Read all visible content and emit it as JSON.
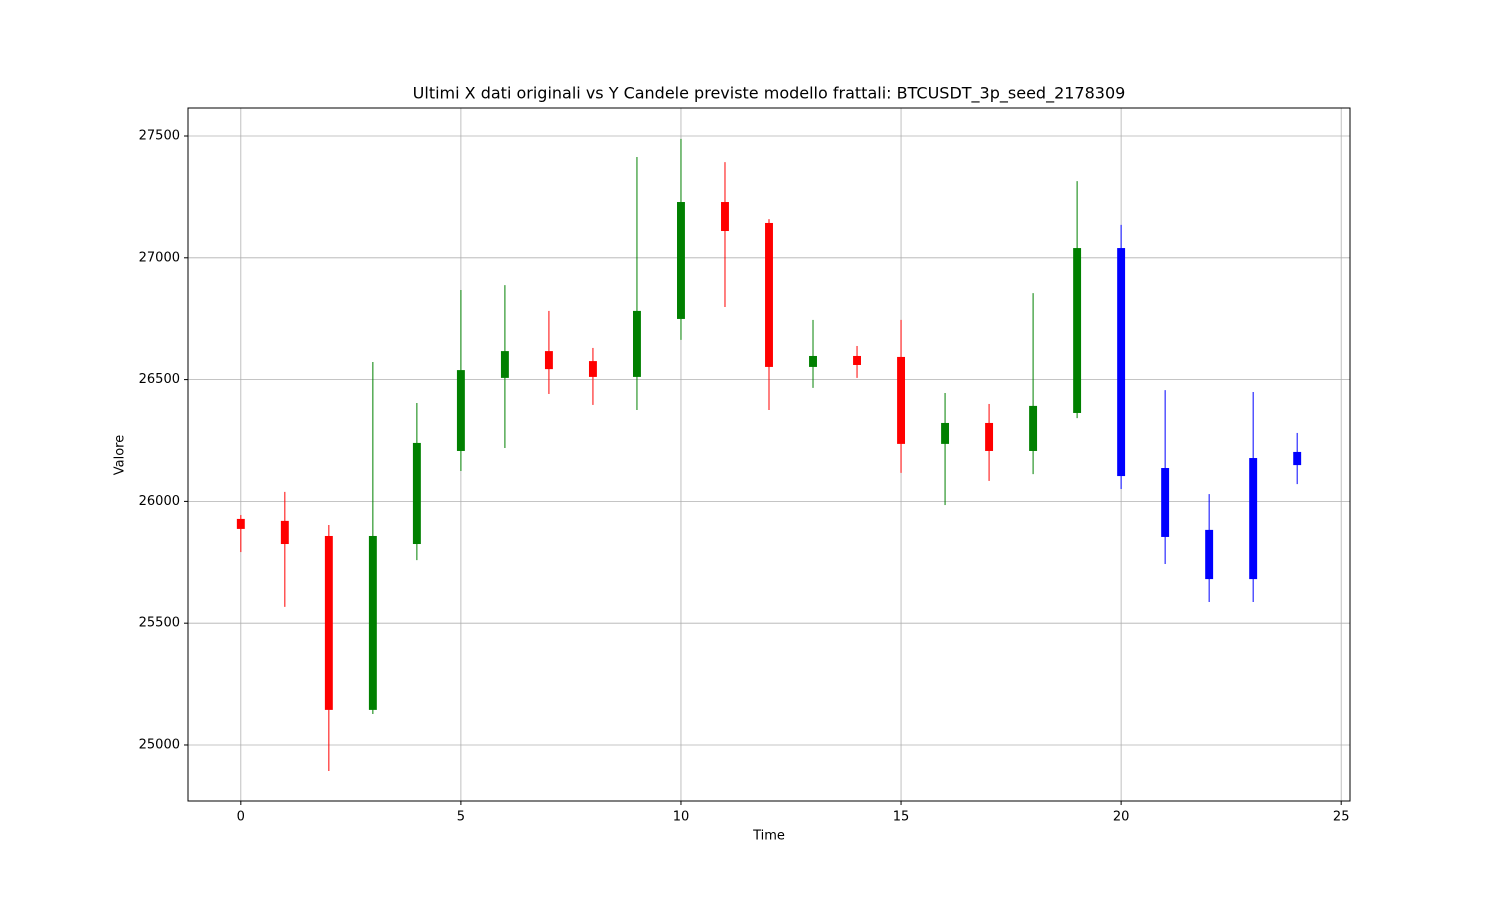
{
  "chart_data": {
    "type": "candlestick",
    "title": "Ultimi X dati originali vs Y Candele previste modello frattali: BTCUSDT_3p_seed_2178309",
    "xlabel": "Time",
    "ylabel": "Valore",
    "x": [
      0,
      1,
      2,
      3,
      4,
      5,
      6,
      7,
      8,
      9,
      10,
      11,
      12,
      13,
      14,
      15,
      16,
      17,
      18,
      19,
      20,
      21,
      22,
      23,
      24
    ],
    "open": [
      25928,
      25920,
      25858,
      25144,
      25825,
      26207,
      26507,
      26617,
      26576,
      26511,
      26749,
      27229,
      27143,
      26552,
      26597,
      26593,
      26236,
      26322,
      26207,
      26363,
      27040,
      26137,
      25883,
      25681,
      26149
    ],
    "high": [
      25944,
      26039,
      25903,
      26572,
      26404,
      26868,
      26888,
      26782,
      26630,
      27414,
      27488,
      27393,
      27159,
      26745,
      26638,
      26745,
      26445,
      26400,
      26855,
      27315,
      27135,
      26457,
      26030,
      26449,
      26281
    ],
    "low": [
      25792,
      25567,
      24893,
      25127,
      25759,
      26125,
      26219,
      26441,
      26396,
      26375,
      26663,
      26798,
      26375,
      26466,
      26507,
      26117,
      25985,
      26084,
      26112,
      26342,
      26051,
      25743,
      25587,
      25587,
      26071
    ],
    "close": [
      25887,
      25825,
      25144,
      25858,
      26240,
      26539,
      26617,
      26543,
      26511,
      26782,
      27229,
      27110,
      26552,
      26597,
      26560,
      26236,
      26322,
      26207,
      26392,
      27040,
      26104,
      25854,
      25681,
      26178,
      26203
    ],
    "colors": [
      "red",
      "red",
      "red",
      "green",
      "green",
      "green",
      "green",
      "red",
      "red",
      "green",
      "green",
      "red",
      "red",
      "green",
      "red",
      "red",
      "green",
      "red",
      "green",
      "green",
      "blue",
      "blue",
      "blue",
      "blue",
      "blue"
    ],
    "xlim": [
      -1.2,
      25.2
    ],
    "ylim": [
      24770,
      27615
    ],
    "xticks": [
      0,
      5,
      10,
      15,
      20,
      25
    ],
    "yticks": [
      25000,
      25500,
      26000,
      26500,
      27000,
      27500
    ],
    "grid": true
  }
}
